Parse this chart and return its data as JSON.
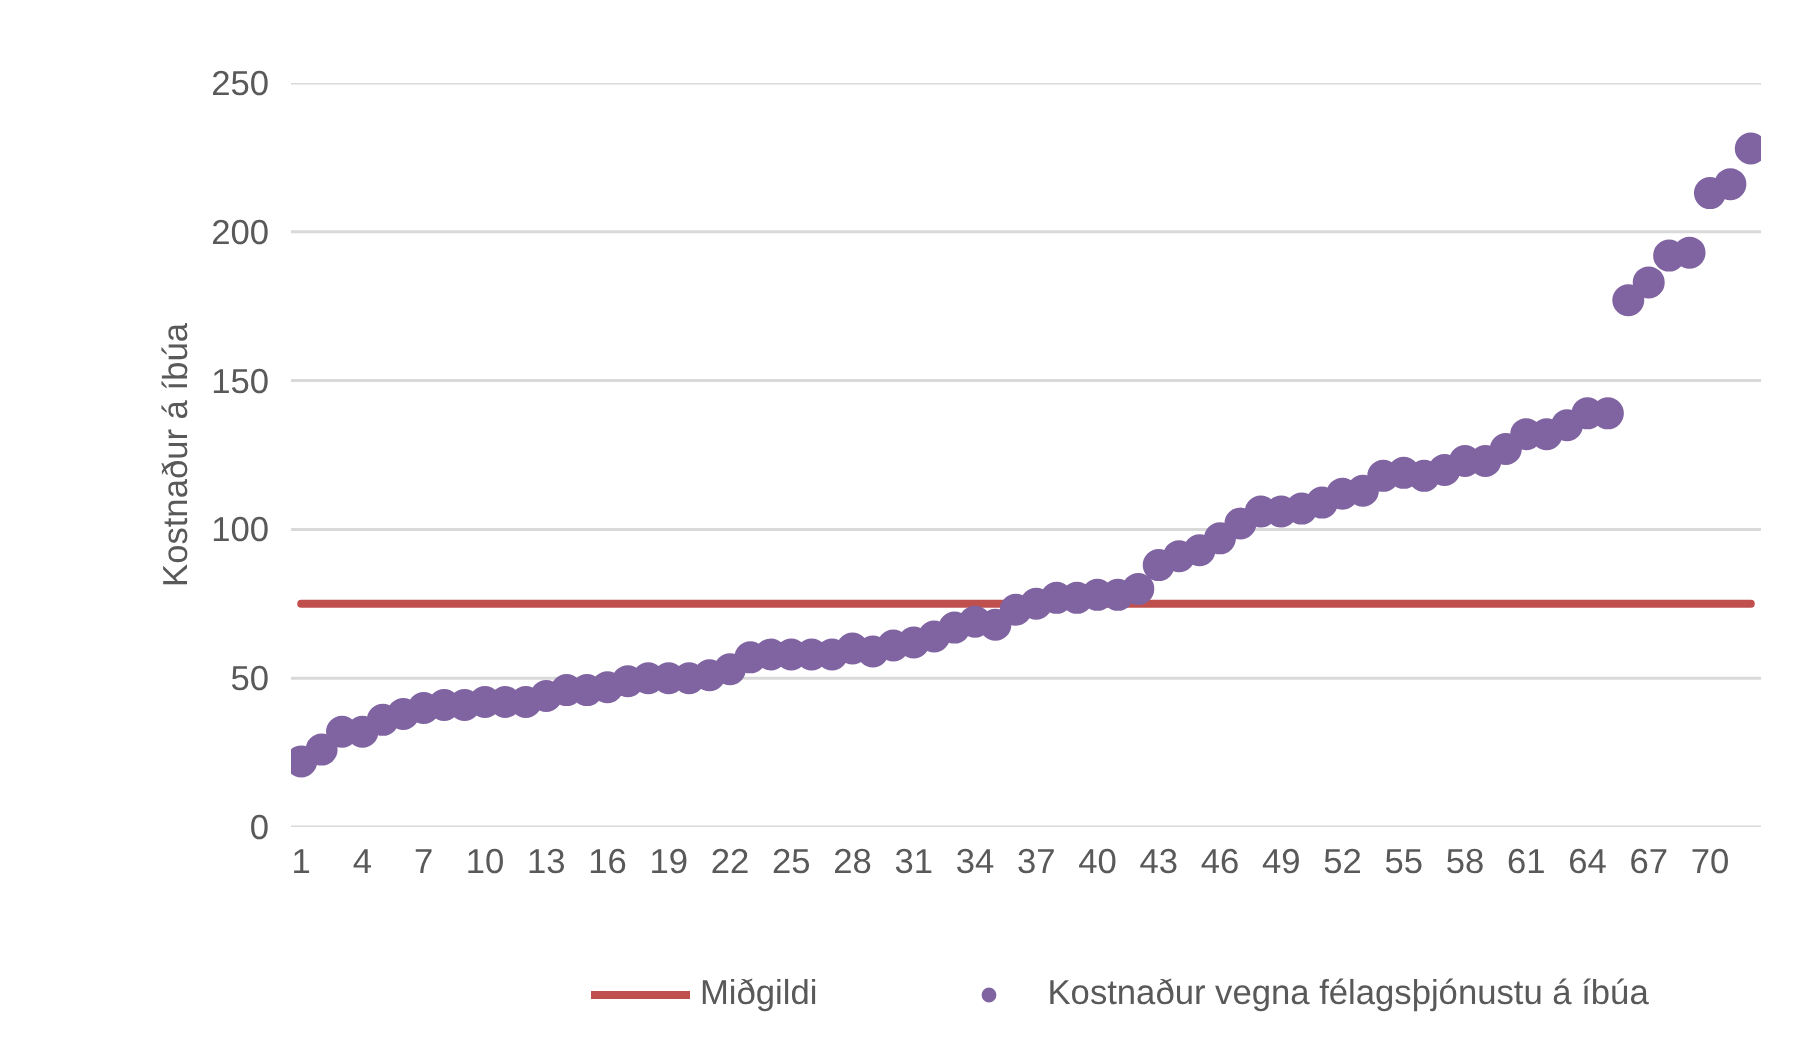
{
  "chart_data": {
    "type": "scatter",
    "ylabel": "Kostnaður á íbúa",
    "x": [
      1,
      2,
      3,
      4,
      5,
      6,
      7,
      8,
      9,
      10,
      11,
      12,
      13,
      14,
      15,
      16,
      17,
      18,
      19,
      20,
      21,
      22,
      23,
      24,
      25,
      26,
      27,
      28,
      29,
      30,
      31,
      32,
      33,
      34,
      35,
      36,
      37,
      38,
      39,
      40,
      41,
      42,
      43,
      44,
      45,
      46,
      47,
      48,
      49,
      50,
      51,
      52,
      53,
      54,
      55,
      56,
      57,
      58,
      59,
      60,
      61,
      62,
      63,
      64,
      65,
      66,
      67,
      68,
      69,
      70,
      71,
      72
    ],
    "series": [
      {
        "name": "Kostnaður vegna félagsþjónustu á íbúa",
        "color": "#8064a2",
        "values": [
          22,
          26,
          32,
          32,
          36,
          38,
          40,
          41,
          41,
          42,
          42,
          42,
          44,
          46,
          46,
          47,
          49,
          50,
          50,
          50,
          51,
          53,
          57,
          58,
          58,
          58,
          58,
          60,
          59,
          61,
          62,
          64,
          67,
          69,
          68,
          73,
          75,
          77,
          77,
          78,
          78,
          80,
          88,
          91,
          93,
          97,
          102,
          106,
          106,
          107,
          109,
          112,
          113,
          118,
          119,
          118,
          120,
          123,
          123,
          127,
          132,
          132,
          135,
          139,
          139,
          177,
          183,
          192,
          193,
          213,
          216,
          228
        ]
      }
    ],
    "ref_lines": [
      {
        "axis": "y",
        "value": 75,
        "label": "Miðgildi",
        "color": "#c0504d"
      }
    ],
    "xlim": [
      0.5,
      72.5
    ],
    "xticks": [
      1,
      4,
      7,
      10,
      13,
      16,
      19,
      22,
      25,
      28,
      31,
      34,
      37,
      40,
      43,
      46,
      49,
      52,
      55,
      58,
      61,
      64,
      67,
      70
    ],
    "ylim": [
      0,
      250
    ],
    "yticks": [
      0,
      50,
      100,
      150,
      200,
      250
    ],
    "grid": "y",
    "legend": "bottom",
    "marker": "circle"
  }
}
